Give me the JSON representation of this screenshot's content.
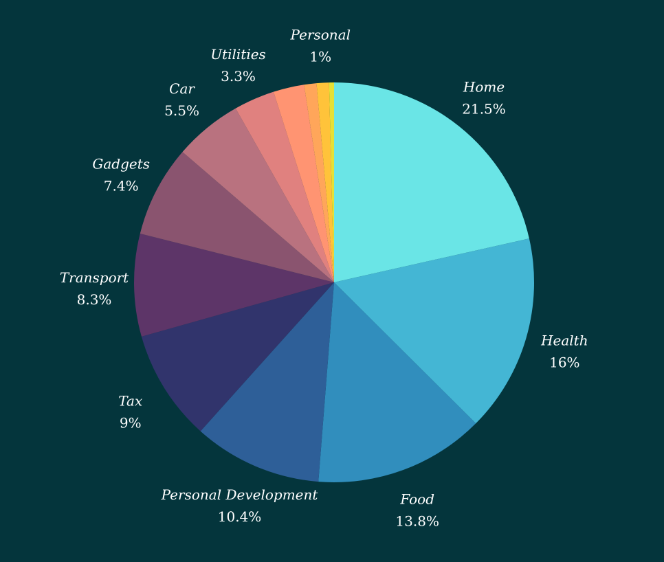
{
  "chart_data": {
    "type": "pie",
    "categories": [
      "Home",
      "Health",
      "Food",
      "Personal Development",
      "Tax",
      "Transport",
      "Gadgets",
      "Car",
      "Utilities",
      "",
      "",
      "Personal",
      ""
    ],
    "values": [
      21.5,
      16,
      13.8,
      10.4,
      9,
      8.3,
      7.4,
      5.5,
      3.3,
      2.5,
      1,
      1,
      0.4
    ],
    "value_labels": [
      "21.5%",
      "16%",
      "13.8%",
      "10.4%",
      "9%",
      "8.3%",
      "7.4%",
      "5.5%",
      "3.3%",
      "",
      "",
      "1%",
      ""
    ],
    "colors": [
      "#6ae5e6",
      "#44b6d4",
      "#318ebd",
      "#2e5f98",
      "#31346c",
      "#5d3568",
      "#8a546f",
      "#b9727f",
      "#e0817f",
      "#ff9472",
      "#ffa65a",
      "#ffc33a",
      "#e6e035"
    ],
    "start": "12 o'clock",
    "direction": "clockwise",
    "legend": "none",
    "title": ""
  }
}
